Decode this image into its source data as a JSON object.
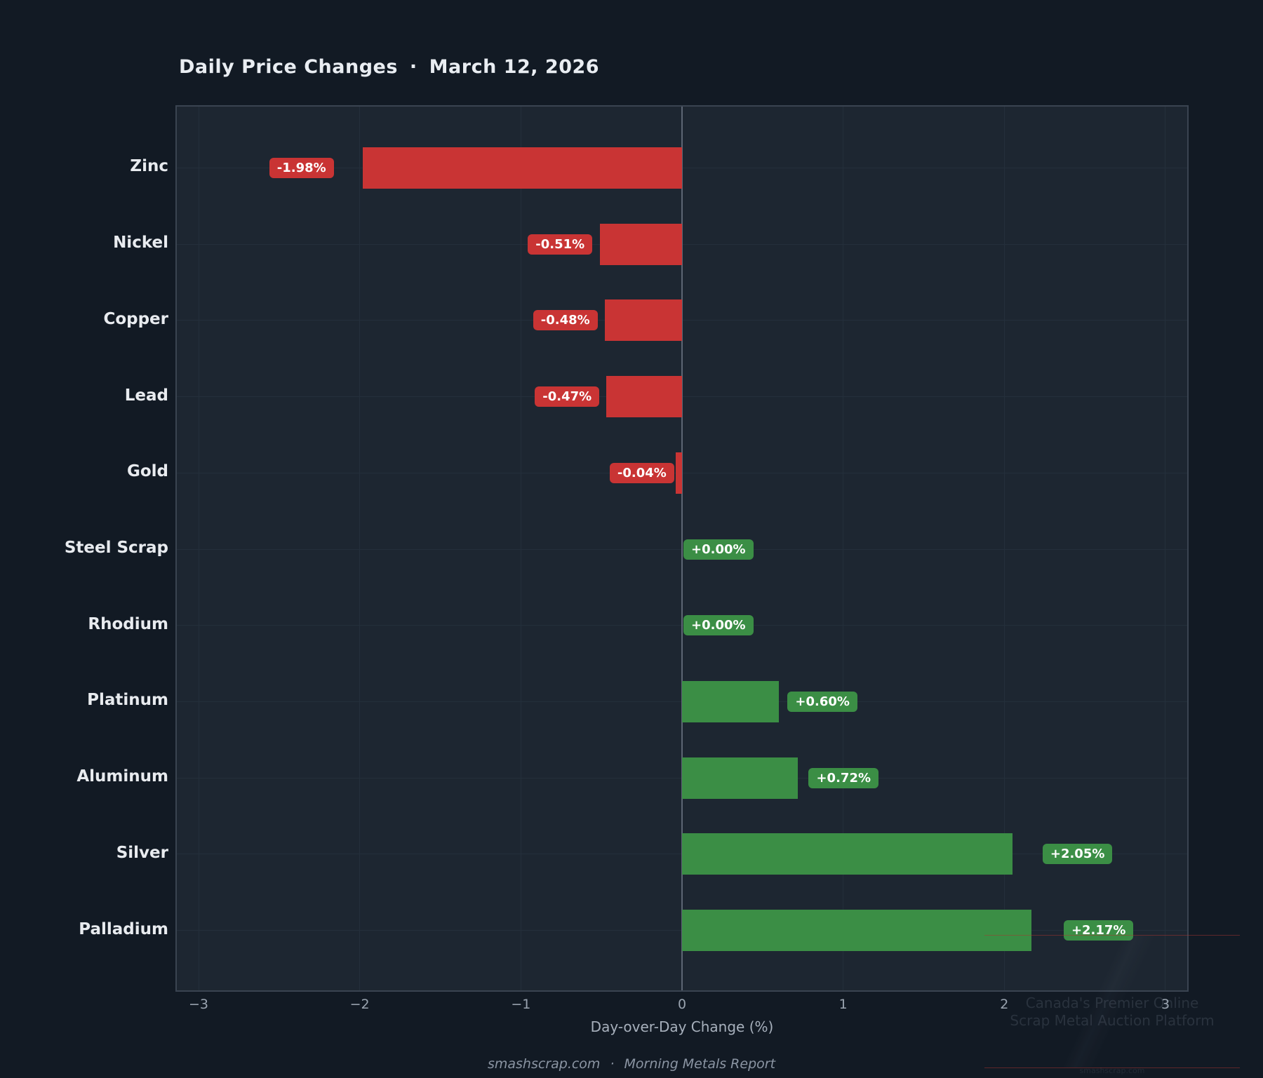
{
  "title": {
    "main": "Daily Price Changes",
    "separator": "·",
    "date": "March 12, 2026"
  },
  "chart_data": {
    "type": "bar",
    "orientation": "horizontal",
    "title": "Daily Price Changes · March 12, 2026",
    "categories": [
      "Zinc",
      "Nickel",
      "Copper",
      "Lead",
      "Gold",
      "Steel Scrap",
      "Rhodium",
      "Platinum",
      "Aluminum",
      "Silver",
      "Palladium"
    ],
    "values": [
      -1.98,
      -0.51,
      -0.48,
      -0.47,
      -0.04,
      0.0,
      0.0,
      0.6,
      0.72,
      2.05,
      2.17
    ],
    "value_labels": [
      "-1.98%",
      "-0.51%",
      "-0.48%",
      "-0.47%",
      "-0.04%",
      "+0.00%",
      "+0.00%",
      "+0.60%",
      "+0.72%",
      "+2.05%",
      "+2.17%"
    ],
    "xlabel": "Day-over-Day Change (%)",
    "xlim": [
      -3.135,
      3.135
    ],
    "xticks": [
      -3,
      -2,
      -1,
      0,
      1,
      2,
      3
    ],
    "xtick_labels": [
      "−3",
      "−2",
      "−1",
      "0",
      "1",
      "2",
      "3"
    ],
    "grid": true,
    "legend": "none",
    "colors": {
      "negative": "#c93434",
      "positive": "#3b8e45"
    }
  },
  "footer": {
    "site": "smashscrap.com",
    "separator": "·",
    "report": "Morning Metals Report"
  },
  "watermark": {
    "line1": "Canada's Premier Online",
    "line2": "Scrap Metal Auction Platform",
    "line3": "smashscrap.com"
  }
}
